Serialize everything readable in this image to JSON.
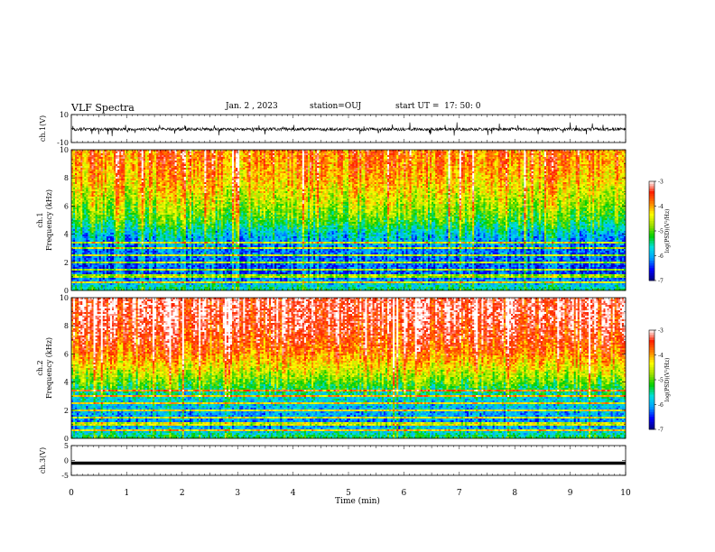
{
  "header": {
    "title": "VLF Spectra",
    "date": "Jan. 2 , 2023",
    "station": "station=OUJ",
    "start": "start UT =  17: 50: 0"
  },
  "chart_data": [
    {
      "type": "line",
      "panel": "ch1-waveform",
      "ylabel": "ch.1(V)",
      "ylim": [
        -10,
        10
      ],
      "yticks": [
        "10",
        "-10"
      ],
      "xlim": [
        0,
        10
      ],
      "baseline_v": -0.5,
      "spike_note": "dense impulsive spikes reaching about +/-5 V",
      "color": "#000000"
    },
    {
      "type": "heatmap",
      "panel": "ch1-spectrogram",
      "ylabel_channel": "ch.1",
      "ylabel": "Frequency (kHz)",
      "ylim": [
        0,
        10
      ],
      "yticks": [
        "0",
        "2",
        "4",
        "6",
        "8",
        "10"
      ],
      "xlim": [
        0,
        10
      ],
      "colorbar": {
        "label": "log(PSD)(V²/Hz)",
        "range": [
          -7,
          -3
        ],
        "ticks": [
          "-3",
          "-4",
          "-5",
          "-6",
          "-7"
        ]
      },
      "colors": [
        "#000080",
        "#0000ff",
        "#00a0ff",
        "#00e0e0",
        "#00d000",
        "#a0e000",
        "#ffff00",
        "#ff8000",
        "#ff2000",
        "#ffffff"
      ],
      "profile_freq_khz": [
        0,
        1,
        2,
        3,
        4,
        5,
        6,
        7,
        8,
        9,
        10
      ],
      "profile_log_psd": [
        -5.4,
        -6.4,
        -6.3,
        -6.2,
        -5.8,
        -5.1,
        -4.7,
        -4.4,
        -4.1,
        -3.9,
        -3.8
      ],
      "line_bands_khz": [
        0.6,
        1.0,
        1.5,
        2.0,
        2.5,
        3.0,
        3.4
      ]
    },
    {
      "type": "heatmap",
      "panel": "ch2-spectrogram",
      "ylabel_channel": "ch.2",
      "ylabel": "Frequency (kHz)",
      "ylim": [
        0,
        10
      ],
      "yticks": [
        "0",
        "2",
        "4",
        "6",
        "8",
        "10"
      ],
      "xlim": [
        0,
        10
      ],
      "colorbar": {
        "label": "log(PSD)(V²/Hz)",
        "range": [
          -7,
          -3
        ],
        "ticks": [
          "-3",
          "-4",
          "-5",
          "-6",
          "-7"
        ]
      },
      "colors": [
        "#000080",
        "#0000ff",
        "#00a0ff",
        "#00e0e0",
        "#00d000",
        "#a0e000",
        "#ffff00",
        "#ff8000",
        "#ff2000",
        "#ffffff"
      ],
      "profile_freq_khz": [
        0,
        1,
        2,
        3,
        4,
        5,
        6,
        7,
        8,
        9,
        10
      ],
      "profile_log_psd": [
        -5.3,
        -6.2,
        -6.0,
        -5.7,
        -5.0,
        -4.4,
        -3.9,
        -3.6,
        -3.4,
        -3.3,
        -3.3
      ],
      "line_bands_khz": [
        0.6,
        1.0,
        1.5,
        2.0,
        2.5,
        3.0,
        3.4
      ]
    },
    {
      "type": "line",
      "panel": "ch3-waveform",
      "ylabel": "ch.3(V)",
      "ylim": [
        -5,
        5
      ],
      "yticks": [
        "5",
        "0",
        "-5"
      ],
      "xlim": [
        0,
        10
      ],
      "value_v": -0.9,
      "xlabel": "Time (min)",
      "xticks": [
        "0",
        "1",
        "2",
        "3",
        "4",
        "5",
        "6",
        "7",
        "8",
        "9",
        "10"
      ],
      "color": "#000000"
    }
  ]
}
